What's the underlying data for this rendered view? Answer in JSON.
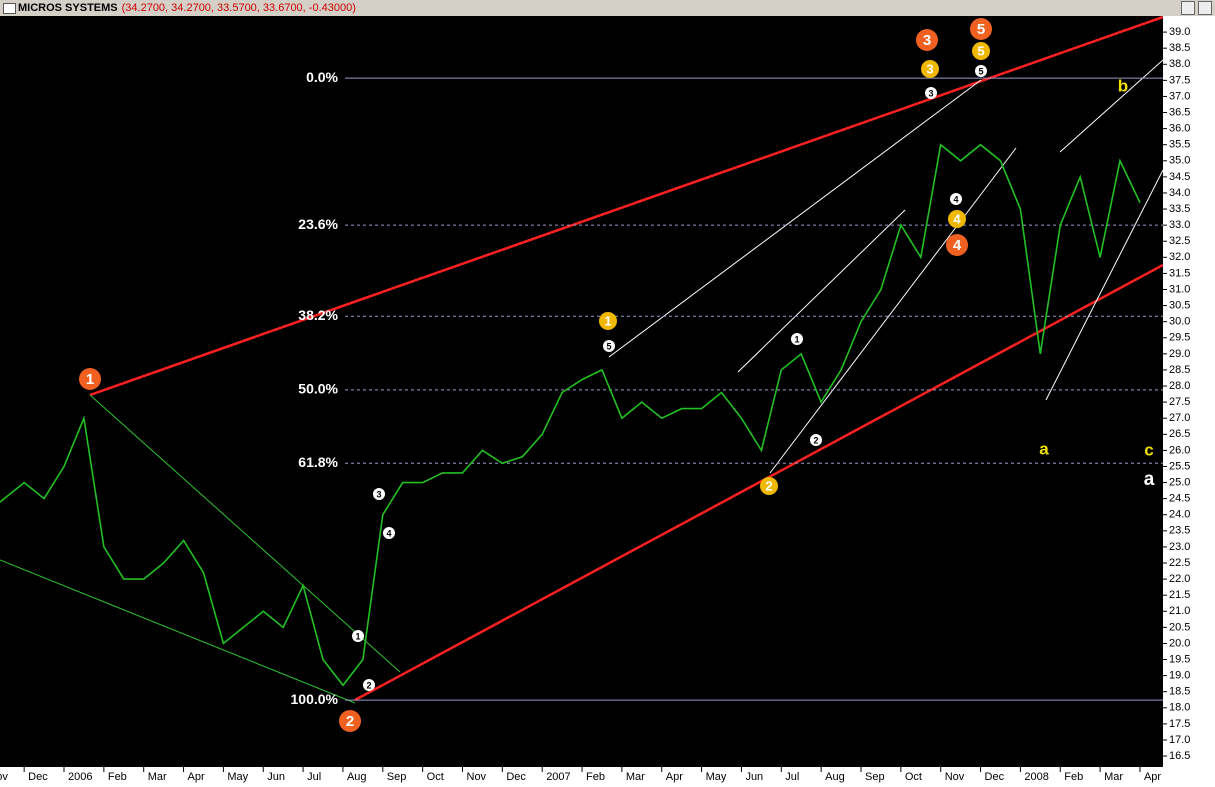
{
  "window_title": "MICROS SYSTEMS",
  "quote": "(34.2700, 34.2700, 33.5700, 33.6700, -0.43000)",
  "chart_data": {
    "type": "line",
    "color": "#22c022",
    "categories": [
      "Nov",
      null,
      "Dec",
      null,
      "2006",
      null,
      "Feb",
      null,
      "Mar",
      null,
      "Apr",
      null,
      "May",
      null,
      "Jun",
      null,
      "Jul",
      null,
      "Aug",
      null,
      "Sep",
      null,
      "Oct",
      null,
      "Nov",
      null,
      "Dec",
      null,
      "2007",
      null,
      "Feb",
      null,
      "Mar",
      null,
      "Apr",
      null,
      "May",
      null,
      "Jun",
      null,
      "Jul",
      null,
      "Aug",
      null,
      "Sep",
      null,
      "Oct",
      null,
      "Nov",
      null,
      "Dec",
      null,
      "2008",
      null,
      "Feb",
      null,
      "Mar",
      null,
      "Apr"
    ],
    "series": [
      {
        "name": "MICROS SYSTEMS",
        "color": "#22c022",
        "values": [
          24,
          24.5,
          25,
          24.5,
          25.5,
          27,
          23,
          22,
          22,
          22.5,
          23.2,
          22.2,
          20,
          20.5,
          21,
          20.5,
          21.8,
          19.5,
          18.7,
          19.5,
          24,
          25,
          25,
          25.3,
          25.3,
          26,
          25.6,
          25.8,
          26.5,
          27.8,
          28.2,
          28.5,
          27,
          27.5,
          27,
          27.3,
          27.3,
          27.8,
          27,
          26,
          28.5,
          29,
          27.5,
          28.5,
          30,
          31,
          33,
          32,
          35.5,
          35,
          35.5,
          35,
          33.5,
          29,
          33,
          34.5,
          32,
          35,
          33.7
        ]
      }
    ],
    "ylim": [
      16.16,
      39.5
    ],
    "yticks": [
      16.5,
      {
        "value": 17,
        "label": "17.0"
      },
      17.5,
      {
        "value": 18,
        "label": "18.0"
      },
      18.5,
      {
        "value": 19,
        "label": "19.0"
      },
      19.5,
      {
        "value": 20,
        "label": "20.0"
      },
      20.5,
      {
        "value": 21,
        "label": "21.0"
      },
      21.5,
      {
        "value": 22,
        "label": "22.0"
      },
      22.5,
      {
        "value": 23,
        "label": "23.0"
      },
      23.5,
      {
        "value": 24,
        "label": "24.0"
      },
      24.5,
      {
        "value": 25,
        "label": "25.0"
      },
      25.5,
      {
        "value": 26,
        "label": "26.0"
      },
      26.5,
      {
        "value": 27,
        "label": "27.0"
      },
      27.5,
      {
        "value": 28,
        "label": "28.0"
      },
      28.5,
      {
        "value": 29,
        "label": "29.0"
      },
      29.5,
      {
        "value": 30,
        "label": "30.0"
      },
      30.5,
      {
        "value": 31,
        "label": "31.0"
      },
      31.5,
      {
        "value": 32,
        "label": "32.0"
      },
      32.5,
      {
        "value": 33,
        "label": "33.0"
      },
      33.5,
      {
        "value": 34,
        "label": "34.0"
      },
      34.5,
      {
        "value": 35,
        "label": "35.0"
      },
      35.5,
      {
        "value": 36,
        "label": "36.0"
      },
      36.5,
      {
        "value": 37,
        "label": "37.0"
      },
      37.5,
      {
        "value": 38,
        "label": "38.0"
      },
      38.5,
      {
        "value": 39,
        "label": "39.0"
      }
    ],
    "fib_levels": [
      {
        "label": "0.0%",
        "value": 37.57
      },
      {
        "label": "23.6%",
        "value": 33.0
      },
      {
        "label": "38.2%",
        "value": 30.17
      },
      {
        "label": "50.0%",
        "value": 27.88
      },
      {
        "label": "61.8%",
        "value": 25.6
      },
      {
        "label": "100.0%",
        "value": 18.24
      }
    ],
    "annotations": [
      {
        "text": "1",
        "style": "orange"
      },
      {
        "text": "2",
        "style": "orange"
      },
      {
        "text": "3",
        "style": "orange"
      },
      {
        "text": "4",
        "style": "orange"
      },
      {
        "text": "5",
        "style": "orange"
      },
      {
        "text": "1",
        "style": "yellow"
      },
      {
        "text": "2",
        "style": "yellow"
      },
      {
        "text": "3",
        "style": "yellow"
      },
      {
        "text": "4",
        "style": "yellow"
      },
      {
        "text": "5",
        "style": "yellow"
      },
      {
        "text": "1",
        "style": "white"
      },
      {
        "text": "2",
        "style": "white"
      },
      {
        "text": "3",
        "style": "white"
      },
      {
        "text": "4",
        "style": "white"
      },
      {
        "text": "5",
        "style": "white"
      },
      {
        "text": "1",
        "style": "white"
      },
      {
        "text": "2",
        "style": "white"
      },
      {
        "text": "3",
        "style": "white"
      },
      {
        "text": "4",
        "style": "white"
      },
      {
        "text": "5",
        "style": "white"
      },
      {
        "text": "a",
        "style": "yellow-letter"
      },
      {
        "text": "b",
        "style": "yellow-letter"
      },
      {
        "text": "c",
        "style": "yellow-letter"
      },
      {
        "text": "a",
        "style": "white-letter"
      }
    ]
  }
}
